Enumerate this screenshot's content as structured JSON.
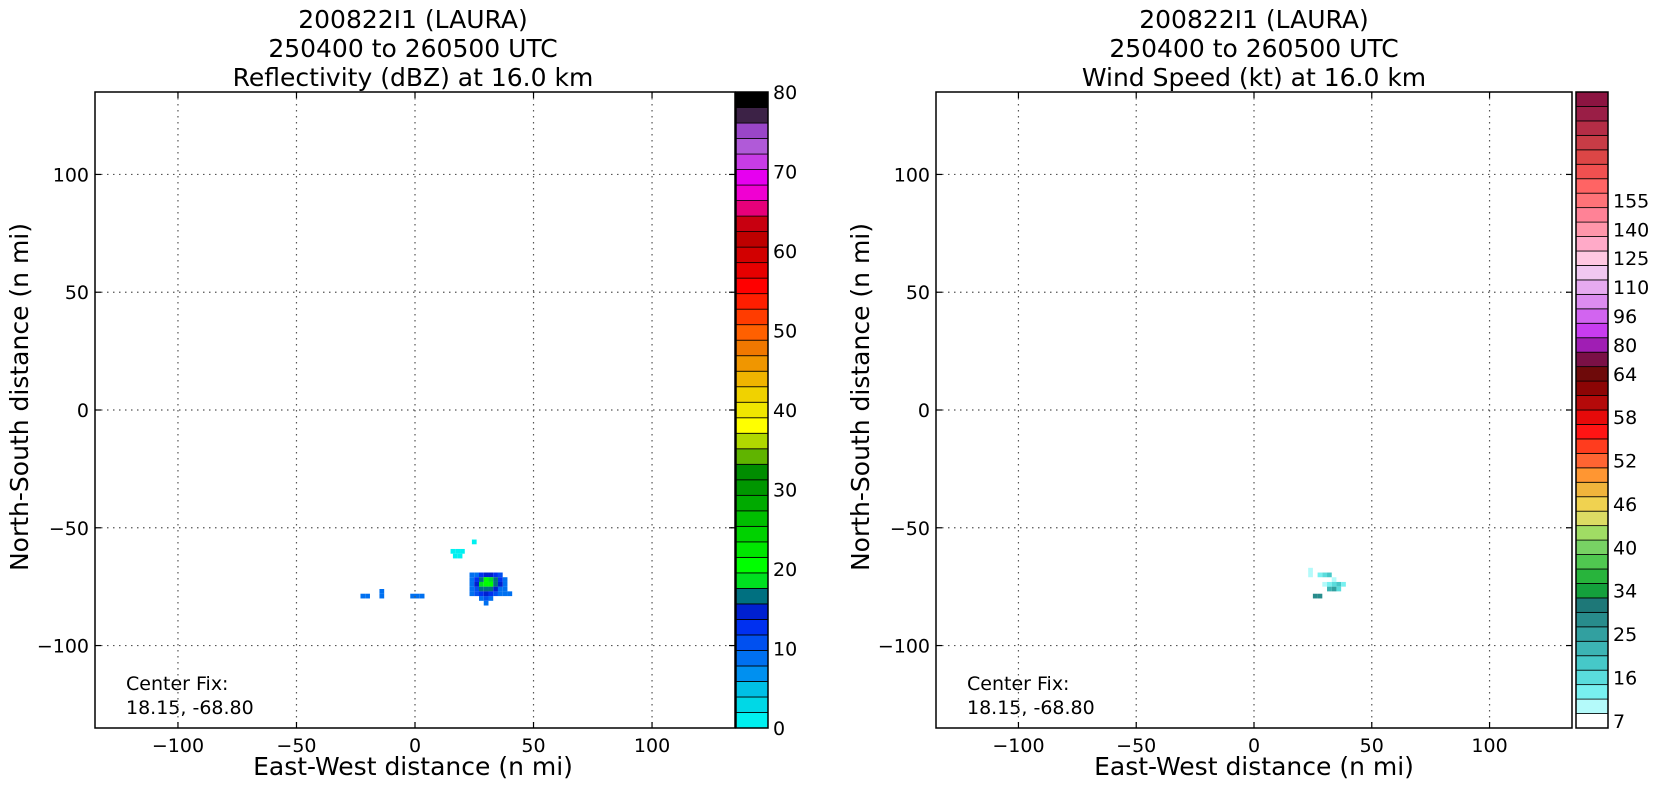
{
  "chart_data": [
    {
      "type": "heatmap",
      "title_lines": [
        "200822I1 (LAURA)",
        "250400 to 260500 UTC",
        "Reflectivity (dBZ) at 16.0 km"
      ],
      "xlabel": "East-West distance (n mi)",
      "ylabel": "North-South distance (n mi)",
      "xlim": [
        -135,
        135
      ],
      "ylim": [
        -135,
        135
      ],
      "xticks": [
        -100,
        -50,
        0,
        50,
        100
      ],
      "yticks": [
        -100,
        -50,
        0,
        50,
        100
      ],
      "xtick_labels": [
        "−100",
        "−50",
        "0",
        "50",
        "100"
      ],
      "ytick_labels": [
        "−100",
        "−50",
        "0",
        "50",
        "100"
      ],
      "grid": true,
      "annotation": [
        "Center Fix:",
        "18.15, -68.80"
      ],
      "colorbar": {
        "min": 0,
        "max": 80,
        "step": 2.5,
        "tick_values": [
          0,
          10,
          20,
          30,
          40,
          50,
          60,
          70,
          80
        ],
        "tick_labels": [
          "0",
          "10",
          "20",
          "30",
          "40",
          "50",
          "60",
          "70",
          "80"
        ],
        "colors": [
          "#00f0f0",
          "#00d8e6",
          "#00c0e6",
          "#0090f0",
          "#0070f0",
          "#0050f0",
          "#0030f0",
          "#0020d0",
          "#007080",
          "#00e020",
          "#00ff00",
          "#00e600",
          "#00d200",
          "#00be00",
          "#00aa00",
          "#009600",
          "#008c00",
          "#60b400",
          "#b0d800",
          "#ffff00",
          "#f0e600",
          "#f0d200",
          "#f0b400",
          "#f09600",
          "#f07800",
          "#ff6000",
          "#ff3c00",
          "#ff1e00",
          "#ff0000",
          "#e60000",
          "#d20000",
          "#be0000",
          "#c80010",
          "#e6007a",
          "#f000d2",
          "#e600f0",
          "#c83ce6",
          "#b05ad8",
          "#9a46c8",
          "#3c2246",
          "#000000"
        ]
      },
      "points": [
        {
          "x": 16,
          "y": -60,
          "v": 1
        },
        {
          "x": 18,
          "y": -60,
          "v": 1
        },
        {
          "x": 20,
          "y": -60,
          "v": 1
        },
        {
          "x": 17,
          "y": -62,
          "v": 1
        },
        {
          "x": 19,
          "y": -62,
          "v": 1
        },
        {
          "x": 25,
          "y": -56,
          "v": 1
        },
        {
          "x": -22,
          "y": -79,
          "v": 12
        },
        {
          "x": -20,
          "y": -79,
          "v": 12
        },
        {
          "x": -14,
          "y": -77,
          "v": 11
        },
        {
          "x": -14,
          "y": -79,
          "v": 11
        },
        {
          "x": -1,
          "y": -79,
          "v": 12
        },
        {
          "x": 1,
          "y": -79,
          "v": 12
        },
        {
          "x": 3,
          "y": -79,
          "v": 12
        },
        {
          "x": 24,
          "y": -70,
          "v": 10
        },
        {
          "x": 26,
          "y": -70,
          "v": 12
        },
        {
          "x": 36,
          "y": -70,
          "v": 13
        },
        {
          "x": 24,
          "y": -72,
          "v": 12
        },
        {
          "x": 38,
          "y": -72,
          "v": 12
        },
        {
          "x": 24,
          "y": -74,
          "v": 11
        },
        {
          "x": 38,
          "y": -74,
          "v": 12
        },
        {
          "x": 24,
          "y": -76,
          "v": 12
        },
        {
          "x": 26,
          "y": -76,
          "v": 13
        },
        {
          "x": 36,
          "y": -76,
          "v": 12
        },
        {
          "x": 38,
          "y": -76,
          "v": 11
        },
        {
          "x": 40,
          "y": -78,
          "v": 11
        },
        {
          "x": 24,
          "y": -78,
          "v": 12
        },
        {
          "x": 26,
          "y": -78,
          "v": 14
        },
        {
          "x": 34,
          "y": -78,
          "v": 13
        },
        {
          "x": 36,
          "y": -78,
          "v": 12
        },
        {
          "x": 38,
          "y": -78,
          "v": 12
        },
        {
          "x": 28,
          "y": -80,
          "v": 12
        },
        {
          "x": 30,
          "y": -80,
          "v": 13
        },
        {
          "x": 32,
          "y": -80,
          "v": 12
        },
        {
          "x": 30,
          "y": -82,
          "v": 12
        },
        {
          "x": 28,
          "y": -70,
          "v": 16
        },
        {
          "x": 30,
          "y": -70,
          "v": 18
        },
        {
          "x": 32,
          "y": -70,
          "v": 18
        },
        {
          "x": 34,
          "y": -70,
          "v": 15
        },
        {
          "x": 26,
          "y": -72,
          "v": 17
        },
        {
          "x": 28,
          "y": -72,
          "v": 22
        },
        {
          "x": 30,
          "y": -72,
          "v": 25
        },
        {
          "x": 32,
          "y": -72,
          "v": 24
        },
        {
          "x": 34,
          "y": -72,
          "v": 20
        },
        {
          "x": 36,
          "y": -72,
          "v": 17
        },
        {
          "x": 26,
          "y": -74,
          "v": 18
        },
        {
          "x": 28,
          "y": -74,
          "v": 23
        },
        {
          "x": 30,
          "y": -74,
          "v": 26
        },
        {
          "x": 32,
          "y": -74,
          "v": 25
        },
        {
          "x": 34,
          "y": -74,
          "v": 22
        },
        {
          "x": 36,
          "y": -74,
          "v": 18
        },
        {
          "x": 28,
          "y": -76,
          "v": 20
        },
        {
          "x": 30,
          "y": -76,
          "v": 22
        },
        {
          "x": 32,
          "y": -76,
          "v": 21
        },
        {
          "x": 34,
          "y": -76,
          "v": 18
        },
        {
          "x": 28,
          "y": -78,
          "v": 17
        },
        {
          "x": 30,
          "y": -78,
          "v": 18
        },
        {
          "x": 32,
          "y": -78,
          "v": 17
        }
      ]
    },
    {
      "type": "heatmap",
      "title_lines": [
        "200822I1 (LAURA)",
        "250400 to 260500 UTC",
        "Wind Speed (kt) at 16.0 km"
      ],
      "xlabel": "East-West distance (n mi)",
      "ylabel": "North-South distance (n mi)",
      "xlim": [
        -135,
        135
      ],
      "ylim": [
        -135,
        135
      ],
      "xticks": [
        -100,
        -50,
        0,
        50,
        100
      ],
      "yticks": [
        -100,
        -50,
        0,
        50,
        100
      ],
      "xtick_labels": [
        "−100",
        "−50",
        "0",
        "50",
        "100"
      ],
      "ytick_labels": [
        "−100",
        "−50",
        "0",
        "50",
        "100"
      ],
      "grid": true,
      "annotation": [
        "Center Fix:",
        "18.15, -68.80"
      ],
      "colorbar": {
        "boundaries": [
          7,
          10,
          13,
          16,
          19,
          22,
          25,
          28,
          31,
          34,
          36,
          38,
          40,
          42,
          44,
          46,
          48,
          50,
          52,
          54,
          56,
          58,
          60,
          62,
          64,
          72,
          80,
          88,
          96,
          103,
          110,
          118,
          125,
          133,
          140,
          148,
          155,
          162
        ],
        "tick_values": [
          7,
          16,
          25,
          34,
          40,
          46,
          52,
          58,
          64,
          80,
          96,
          110,
          125,
          140,
          155
        ],
        "tick_labels": [
          "7",
          "16",
          "25",
          "34",
          "40",
          "46",
          "52",
          "58",
          "64",
          "80",
          "96",
          "110",
          "125",
          "140",
          "155"
        ],
        "colors": [
          "#ffffff",
          "#b4fafa",
          "#78f0f0",
          "#5adcdc",
          "#46c8c8",
          "#3cb4b4",
          "#32a0a0",
          "#288c8c",
          "#1e7878",
          "#14a03c",
          "#28b43c",
          "#50c850",
          "#78d264",
          "#a0dc64",
          "#dcdc64",
          "#f0d250",
          "#f0b43c",
          "#ff9632",
          "#ff6432",
          "#ff3c1e",
          "#ff1414",
          "#e60a0a",
          "#b40a0a",
          "#8c0505",
          "#6e0a0a",
          "#7a1046",
          "#a01eb4",
          "#c83cf0",
          "#d264f0",
          "#dc8cf0",
          "#e6aaf0",
          "#f0c8f0",
          "#ffc8e1",
          "#ffaac8",
          "#ff96aa",
          "#ff8296",
          "#ff7378",
          "#ff6464",
          "#f05050",
          "#dc4646",
          "#c83c46",
          "#b42d46",
          "#9a1e46",
          "#8c1441"
        ]
      },
      "points": [
        {
          "x": 17,
          "y": -60,
          "v": 8
        },
        {
          "x": 19,
          "y": -60,
          "v": 9
        },
        {
          "x": 18,
          "y": -62,
          "v": 8
        },
        {
          "x": 24,
          "y": -68,
          "v": 11
        },
        {
          "x": 24,
          "y": -70,
          "v": 12
        },
        {
          "x": 28,
          "y": -70,
          "v": 14
        },
        {
          "x": 30,
          "y": -70,
          "v": 18
        },
        {
          "x": 32,
          "y": -70,
          "v": 20
        },
        {
          "x": 34,
          "y": -72,
          "v": 12
        },
        {
          "x": 36,
          "y": -72,
          "v": 9
        },
        {
          "x": 30,
          "y": -74,
          "v": 10
        },
        {
          "x": 32,
          "y": -74,
          "v": 13
        },
        {
          "x": 34,
          "y": -74,
          "v": 17
        },
        {
          "x": 36,
          "y": -74,
          "v": 21
        },
        {
          "x": 38,
          "y": -74,
          "v": 15
        },
        {
          "x": 32,
          "y": -76,
          "v": 24
        },
        {
          "x": 34,
          "y": -76,
          "v": 26
        },
        {
          "x": 36,
          "y": -76,
          "v": 18
        },
        {
          "x": 26,
          "y": -79,
          "v": 30
        },
        {
          "x": 28,
          "y": -79,
          "v": 29
        }
      ]
    }
  ]
}
